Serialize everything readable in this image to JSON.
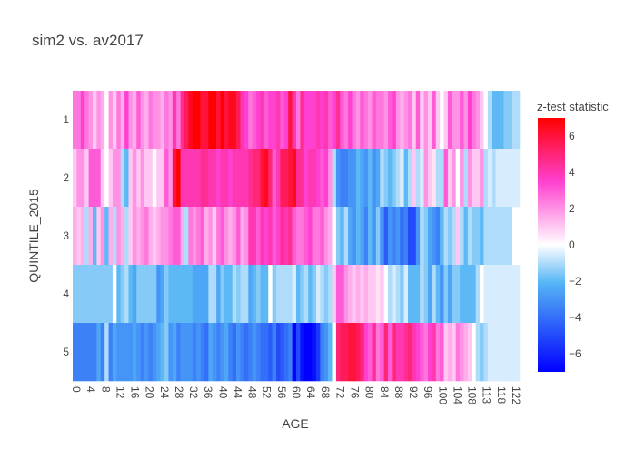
{
  "chart_data": {
    "type": "heatmap",
    "title": "sim2 vs. av2017",
    "xlabel": "AGE",
    "ylabel": "QUINTILE_2015",
    "x_tick_labels": [
      "0",
      "4",
      "8",
      "12",
      "16",
      "20",
      "24",
      "28",
      "32",
      "36",
      "40",
      "44",
      "48",
      "52",
      "56",
      "60",
      "64",
      "68",
      "72",
      "76",
      "80",
      "84",
      "88",
      "92",
      "96",
      "100",
      "104",
      "108",
      "113",
      "118",
      "122"
    ],
    "y_categories": [
      "1",
      "2",
      "3",
      "4",
      "5"
    ],
    "colorbar": {
      "title": "z-test statistic",
      "range": [
        -7,
        7
      ],
      "ticks": [
        6,
        4,
        2,
        0,
        -2,
        -4,
        -6
      ],
      "colorscale": [
        [
          0,
          "#0000ff"
        ],
        [
          0.35,
          "#55b5f5"
        ],
        [
          0.5,
          "#ffffff"
        ],
        [
          0.75,
          "#ff40d0"
        ],
        [
          1,
          "#ff0000"
        ]
      ]
    },
    "columns": 112,
    "z": [
      [
        2.5,
        2.5,
        3.5,
        2.5,
        2,
        1,
        2,
        1.5,
        0,
        2,
        1,
        2.5,
        1.5,
        3.5,
        2,
        1.5,
        3,
        2,
        1.5,
        2.5,
        2,
        2,
        1.5,
        2.5,
        2,
        4,
        2.5,
        4.5,
        5.5,
        6.5,
        7,
        7,
        6,
        6,
        7,
        7,
        6,
        7,
        6,
        6.5,
        6.5,
        5.5,
        4,
        3.5,
        2.5,
        3,
        3.5,
        4,
        3,
        3.5,
        3.5,
        4,
        3,
        3.5,
        6,
        4,
        2.5,
        4.5,
        3.5,
        3.5,
        3.5,
        4,
        3.5,
        4,
        3,
        3.5,
        4.5,
        3,
        2.5,
        3.5,
        2.5,
        2,
        3,
        2.5,
        2,
        3,
        2.5,
        2.5,
        2,
        3,
        3.5,
        2,
        1.5,
        2,
        2.5,
        1,
        3,
        1,
        2,
        1,
        3,
        1,
        0,
        1,
        3,
        2,
        2,
        3,
        2,
        3.5,
        2.5,
        2,
        1,
        0,
        -1,
        -2,
        -2,
        -2,
        -1.5,
        -1.5,
        -1,
        -1
      ],
      [
        1,
        2,
        2,
        1,
        3,
        3,
        3,
        1,
        0,
        1,
        2,
        2,
        -1,
        -2,
        1,
        2,
        1,
        2,
        1,
        1,
        0,
        1,
        1,
        3,
        2,
        6,
        7,
        4,
        4,
        4,
        4,
        4,
        4.5,
        4.5,
        4,
        4,
        3.5,
        4,
        4,
        3.5,
        4,
        4,
        4,
        4,
        4.5,
        5,
        5,
        6,
        6.5,
        5,
        3,
        4,
        5.5,
        5.5,
        6,
        6.5,
        4.5,
        4.5,
        3.5,
        4,
        4,
        3.5,
        3,
        3.5,
        2,
        -1,
        -3,
        -3.5,
        -3.5,
        -3,
        -3,
        -2,
        -2.5,
        -3,
        -2,
        -3,
        -2.5,
        -1,
        -1.5,
        -2,
        -1.5,
        -1,
        -0.5,
        -2,
        -1,
        1,
        -1,
        -0.5,
        2,
        1,
        0.5,
        -1,
        -1,
        3,
        1,
        2,
        0,
        2,
        -1,
        2,
        1,
        1,
        2,
        -1,
        -0.5,
        -1,
        -0.5,
        -0.5,
        -0.5,
        -0.5,
        -0.5,
        -0.5
      ],
      [
        1.5,
        1,
        1.5,
        -1,
        1.5,
        -2,
        1,
        2,
        -2,
        1.5,
        -1,
        2,
        1.5,
        -1,
        1,
        2,
        1.5,
        2,
        2.5,
        1.5,
        1,
        1.5,
        2,
        2,
        2.5,
        3,
        3,
        1.5,
        -1,
        2.5,
        2,
        2.5,
        3,
        1.5,
        2,
        1,
        2.5,
        3,
        2,
        1.5,
        2,
        3,
        1.5,
        2,
        4,
        4,
        3,
        4,
        3.5,
        4,
        3,
        3.5,
        4.5,
        4,
        4.5,
        3,
        2.5,
        2.5,
        3,
        3.5,
        2.5,
        2.5,
        3,
        2,
        1.5,
        0,
        -1.5,
        -2,
        -1,
        -2.5,
        -3,
        -2,
        -2.5,
        -3.5,
        -2,
        -3,
        -1.5,
        -3,
        -4.5,
        -3,
        -3.5,
        -3,
        -4,
        -3.5,
        -5,
        -5,
        -3,
        -1,
        -1.5,
        -2.5,
        -3,
        -3.5,
        -2,
        -1,
        -1.5,
        -1,
        1,
        -1,
        -2,
        -1,
        -1.5,
        -1.5,
        -2,
        -1,
        -1,
        -1,
        -1,
        -1,
        -1,
        -1
      ],
      [
        -1.5,
        -1.5,
        -1.5,
        -1.5,
        -1.5,
        -1.5,
        -1.5,
        -1.5,
        -1.5,
        -1.5,
        0,
        -2,
        -1.5,
        -1,
        -2,
        -2.5,
        -1.5,
        -1.5,
        -1.5,
        -1.5,
        -1.5,
        -3,
        -2.5,
        -1.5,
        -2,
        -2,
        -2,
        -2,
        -2,
        -2,
        -2.5,
        -2.5,
        -2.5,
        -2.5,
        -1,
        -1,
        -2.5,
        -1.5,
        -2,
        -2,
        -1,
        -1.5,
        -1,
        -1,
        -2.5,
        -2,
        -1.5,
        -2,
        -2,
        0,
        -1.5,
        -1,
        -1,
        -1,
        -1,
        -0.5,
        -2,
        -1.5,
        -1,
        -2,
        -1.5,
        -0.5,
        -1,
        -1.5,
        -1,
        1,
        3,
        3,
        2,
        1.5,
        1,
        1.5,
        1,
        1.5,
        1,
        1,
        0.5,
        1,
        0,
        -1,
        -0.5,
        -1,
        -1.5,
        -0.5,
        -2,
        -2,
        -2,
        -1,
        -1.5,
        -2.5,
        -1,
        -2,
        -3,
        -1.5,
        -2.5,
        -1.5,
        -1.5,
        -2,
        -2,
        -2,
        -2,
        -1,
        0,
        -0.5,
        -0.5,
        -0.5,
        -0.5,
        -0.5,
        -0.5,
        -0.5,
        -0.5,
        -0.5
      ],
      [
        -3.5,
        -3.5,
        -3.5,
        -3.5,
        -3.5,
        -3.5,
        -2.5,
        -3.5,
        -1,
        -3.5,
        -2.5,
        -3,
        -3,
        -3,
        -3,
        -2.5,
        -3,
        -3.5,
        -3,
        -3.5,
        -3,
        -2.5,
        -2,
        -1.5,
        -3,
        -2.5,
        -3.5,
        -3,
        -3,
        -3,
        -3.5,
        -3,
        -3.5,
        -4,
        -2.5,
        -3,
        -3.5,
        -3,
        -2.5,
        -3.5,
        -4,
        -3,
        -3.5,
        -4,
        -3.5,
        -3,
        -3.5,
        -4,
        -4,
        -4.5,
        -3.5,
        -5,
        -4.5,
        -4,
        -3.5,
        -7,
        -5,
        -6.5,
        -7,
        -7,
        -6.5,
        -5.5,
        -3.5,
        -3,
        -2,
        0,
        5,
        5.5,
        5.5,
        6,
        6,
        5.5,
        5,
        3.5,
        3,
        4.5,
        2.5,
        3,
        5,
        3,
        5,
        4,
        4,
        4.5,
        5,
        4,
        3.5,
        3,
        2.5,
        3.5,
        4,
        2.5,
        3,
        1,
        1.5,
        1,
        2.5,
        2,
        1.5,
        1,
        0,
        -1,
        -1.5,
        -1,
        -0.5,
        -0.5,
        -0.5,
        -0.5,
        -0.5,
        -0.5,
        -0.5,
        -0.5
      ]
    ]
  }
}
